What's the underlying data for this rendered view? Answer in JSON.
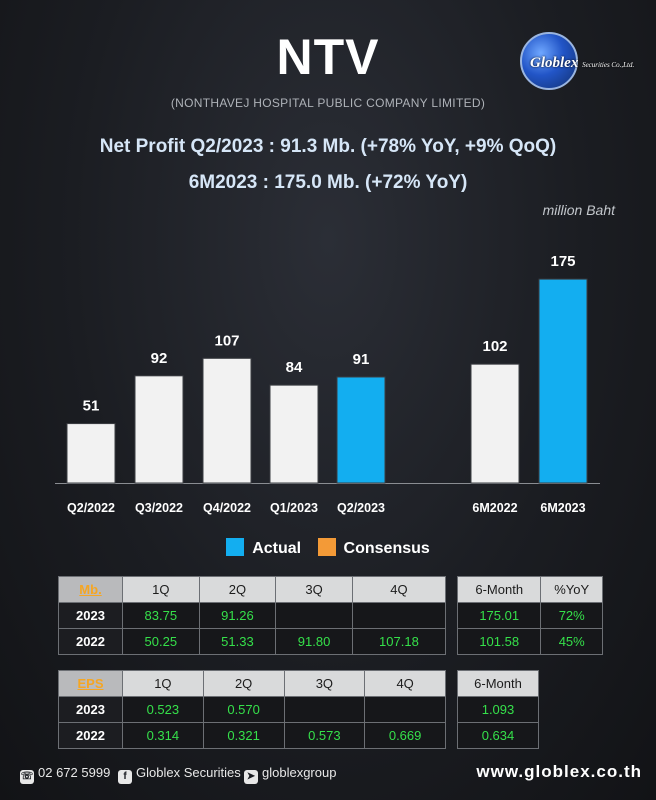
{
  "header": {
    "title": "NTV",
    "subtitle": "(NONTHAVEJ HOSPITAL PUBLIC COMPANY LIMITED)",
    "headline1": "Net Profit  Q2/2023 : 91.3 Mb. (+78% YoY, +9% QoQ)",
    "headline2": "6M2023 : 175.0 Mb. (+72% YoY)",
    "unit": "million Baht",
    "logo_name": "Globlex",
    "logo_sub": "Securities Co.,Ltd."
  },
  "chart_data": {
    "type": "bar",
    "categories": [
      "Q2/2022",
      "Q3/2022",
      "Q4/2022",
      "Q1/2023",
      "Q2/2023",
      "6M2022",
      "6M2023"
    ],
    "values": [
      51,
      92,
      107,
      84,
      91,
      102,
      175
    ],
    "highlighted": [
      "Q2/2023",
      "6M2023"
    ],
    "colors": {
      "normal": "#f2f2f2",
      "highlight": "#13aef0"
    },
    "ylim": [
      0,
      200
    ],
    "grid": false,
    "legend": [
      {
        "name": "Actual",
        "color": "#13aef0"
      },
      {
        "name": "Consensus",
        "color": "#f39a37"
      }
    ],
    "legend_position": "bottom"
  },
  "np_table": {
    "corner": "Mb.",
    "columns": [
      "1Q",
      "2Q",
      "3Q",
      "4Q"
    ],
    "rows": [
      {
        "year": "2023",
        "values": [
          "83.75",
          "91.26",
          "",
          ""
        ]
      },
      {
        "year": "2022",
        "values": [
          "50.25",
          "51.33",
          "91.80",
          "107.18"
        ]
      }
    ]
  },
  "np_6m_table": {
    "columns": [
      "6-Month",
      "%YoY"
    ],
    "rows": [
      [
        "175.01",
        "72%"
      ],
      [
        "101.58",
        "45%"
      ]
    ]
  },
  "eps_table": {
    "corner": "EPS",
    "columns": [
      "1Q",
      "2Q",
      "3Q",
      "4Q"
    ],
    "rows": [
      {
        "year": "2023",
        "values": [
          "0.523",
          "0.570",
          "",
          ""
        ]
      },
      {
        "year": "2022",
        "values": [
          "0.314",
          "0.321",
          "0.573",
          "0.669"
        ]
      }
    ]
  },
  "eps_6m_table": {
    "columns": [
      "6-Month"
    ],
    "rows": [
      [
        "1.093"
      ],
      [
        "0.634"
      ]
    ]
  },
  "footer": {
    "phone": "02 672 5999",
    "facebook": "Globlex Securities",
    "telegram": "globlexgroup",
    "website": "www.globlex.co.th"
  }
}
